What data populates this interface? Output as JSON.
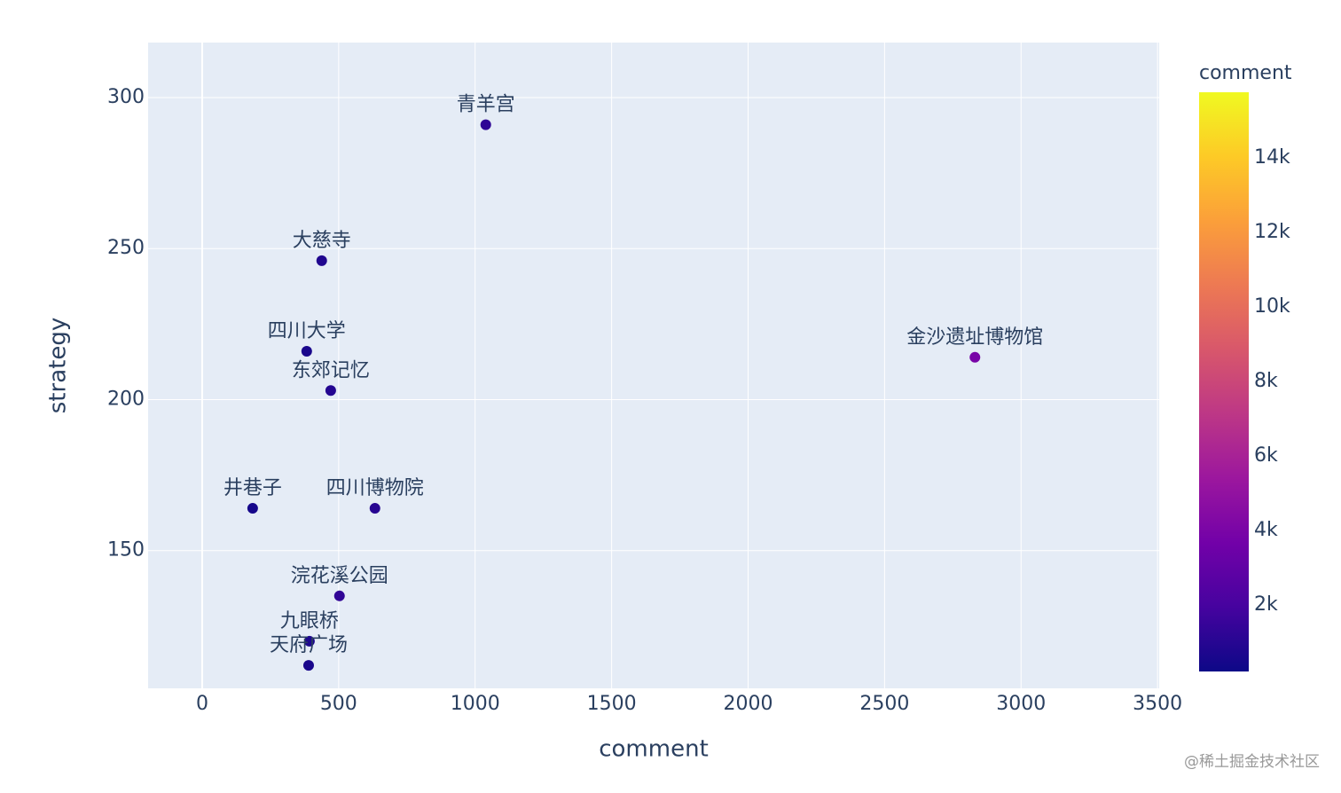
{
  "chart_data": {
    "type": "scatter",
    "x_label": "comment",
    "y_label": "strategy",
    "labels": [
      "青羊宫",
      "大慈寺",
      "四川大学",
      "东郊记忆",
      "金沙遗址博物馆",
      "井巷子",
      "四川博物院",
      "浣花溪公园",
      "九眼桥",
      "天府广场"
    ],
    "x": [
      1039,
      438,
      383,
      471,
      2831,
      185,
      633,
      503,
      393,
      390
    ],
    "values": [
      291,
      246,
      216,
      203,
      214,
      164,
      164,
      135,
      120,
      112
    ],
    "color_values": [
      1200,
      800,
      600,
      900,
      3900,
      500,
      1000,
      1300,
      700,
      600
    ],
    "colorbar_title": "comment",
    "colorscale": [
      "#0d0887",
      "#46039f",
      "#7201a8",
      "#9c179e",
      "#bd3786",
      "#d8576b",
      "#ed7953",
      "#fb9f3a",
      "#fdca26",
      "#f0f921"
    ],
    "clim": [
      214,
      15762
    ],
    "cticks": [
      {
        "value": 2000,
        "label": "2k"
      },
      {
        "value": 4000,
        "label": "4k"
      },
      {
        "value": 6000,
        "label": "6k"
      },
      {
        "value": 8000,
        "label": "8k"
      },
      {
        "value": 10000,
        "label": "10k"
      },
      {
        "value": 12000,
        "label": "12k"
      },
      {
        "value": 14000,
        "label": "14k"
      }
    ],
    "xlim": [
      -198,
      3506
    ],
    "xticks": [
      0,
      500,
      1000,
      1500,
      2000,
      2500,
      3000,
      3500
    ],
    "ylim": [
      104.4,
      318.2
    ],
    "yticks": [
      150,
      200,
      250,
      300
    ],
    "grid": true,
    "watermark": "@稀土掘金技术社区"
  }
}
